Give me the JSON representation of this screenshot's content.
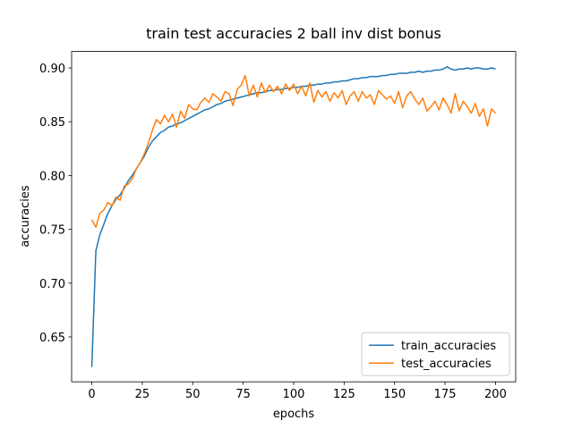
{
  "chart_data": {
    "type": "line",
    "title": "train test accuracies 2 ball inv dist bonus",
    "x_label": "epochs",
    "y_label": "accuracies",
    "x": [
      0,
      2,
      4,
      6,
      8,
      10,
      12,
      14,
      16,
      18,
      20,
      22,
      24,
      26,
      28,
      30,
      32,
      34,
      36,
      38,
      40,
      42,
      44,
      46,
      48,
      50,
      52,
      54,
      56,
      58,
      60,
      62,
      64,
      66,
      68,
      70,
      72,
      74,
      76,
      78,
      80,
      82,
      84,
      86,
      88,
      90,
      92,
      94,
      96,
      98,
      100,
      102,
      104,
      106,
      108,
      110,
      112,
      114,
      116,
      118,
      120,
      122,
      124,
      126,
      128,
      130,
      132,
      134,
      136,
      138,
      140,
      142,
      144,
      146,
      148,
      150,
      152,
      154,
      156,
      158,
      160,
      162,
      164,
      166,
      168,
      170,
      172,
      174,
      176,
      178,
      180,
      182,
      184,
      186,
      188,
      190,
      192,
      194,
      196,
      198,
      200
    ],
    "series": [
      {
        "name": "train_accuracies",
        "color": "#1f77b4",
        "values": [
          0.622,
          0.73,
          0.745,
          0.755,
          0.765,
          0.772,
          0.778,
          0.782,
          0.788,
          0.795,
          0.8,
          0.806,
          0.812,
          0.818,
          0.826,
          0.832,
          0.836,
          0.84,
          0.842,
          0.845,
          0.846,
          0.848,
          0.849,
          0.851,
          0.853,
          0.855,
          0.857,
          0.859,
          0.861,
          0.862,
          0.864,
          0.866,
          0.867,
          0.869,
          0.87,
          0.871,
          0.872,
          0.873,
          0.874,
          0.875,
          0.876,
          0.877,
          0.877,
          0.878,
          0.879,
          0.879,
          0.88,
          0.88,
          0.881,
          0.881,
          0.882,
          0.882,
          0.883,
          0.883,
          0.884,
          0.884,
          0.885,
          0.885,
          0.886,
          0.886,
          0.887,
          0.887,
          0.888,
          0.888,
          0.889,
          0.89,
          0.89,
          0.891,
          0.891,
          0.892,
          0.892,
          0.892,
          0.893,
          0.893,
          0.894,
          0.894,
          0.895,
          0.895,
          0.895,
          0.896,
          0.896,
          0.897,
          0.896,
          0.897,
          0.897,
          0.898,
          0.898,
          0.899,
          0.901,
          0.899,
          0.898,
          0.899,
          0.899,
          0.9,
          0.899,
          0.9,
          0.9,
          0.899,
          0.899,
          0.9,
          0.899
        ]
      },
      {
        "name": "test_accuracies",
        "color": "#ff7f0e",
        "values": [
          0.759,
          0.752,
          0.765,
          0.768,
          0.775,
          0.772,
          0.78,
          0.777,
          0.79,
          0.792,
          0.797,
          0.806,
          0.812,
          0.82,
          0.83,
          0.842,
          0.852,
          0.848,
          0.856,
          0.85,
          0.857,
          0.845,
          0.86,
          0.853,
          0.866,
          0.862,
          0.861,
          0.868,
          0.872,
          0.868,
          0.876,
          0.873,
          0.869,
          0.878,
          0.876,
          0.865,
          0.88,
          0.884,
          0.893,
          0.874,
          0.884,
          0.873,
          0.886,
          0.877,
          0.884,
          0.878,
          0.883,
          0.876,
          0.885,
          0.879,
          0.885,
          0.876,
          0.883,
          0.874,
          0.886,
          0.868,
          0.879,
          0.873,
          0.878,
          0.869,
          0.877,
          0.872,
          0.879,
          0.866,
          0.874,
          0.878,
          0.869,
          0.878,
          0.872,
          0.875,
          0.866,
          0.879,
          0.875,
          0.871,
          0.874,
          0.867,
          0.878,
          0.863,
          0.874,
          0.878,
          0.871,
          0.866,
          0.872,
          0.86,
          0.864,
          0.869,
          0.861,
          0.872,
          0.866,
          0.858,
          0.876,
          0.86,
          0.869,
          0.864,
          0.858,
          0.867,
          0.855,
          0.862,
          0.846,
          0.862,
          0.858
        ]
      }
    ],
    "xlim": [
      -10,
      210
    ],
    "xticks": [
      0,
      25,
      50,
      75,
      100,
      125,
      150,
      175,
      200
    ],
    "ylim": [
      0.6083,
      0.9153
    ],
    "yticks": [
      0.65,
      {
        "value": 0.7,
        "label": "0.70"
      },
      0.75,
      {
        "value": 0.8,
        "label": "0.80"
      },
      0.85,
      {
        "value": 0.9,
        "label": "0.90"
      }
    ],
    "legend": "lower right"
  }
}
